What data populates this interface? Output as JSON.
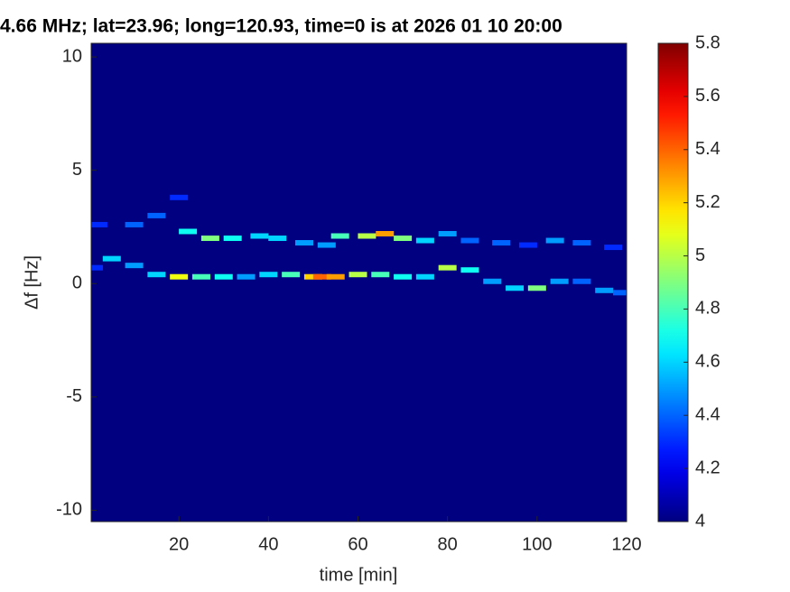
{
  "chart_data": {
    "type": "spectrogram",
    "title": "4.66 MHz;  lat=23.96; long=120.93, time=0 is at 2026 01 10 20:00",
    "xlabel": "time [min]",
    "ylabel": "Δf [Hz]",
    "xlim": [
      0.4,
      120
    ],
    "xticks": [
      20,
      40,
      60,
      80,
      100,
      120
    ],
    "ylim": [
      -10.5,
      10.6
    ],
    "yticks": [
      -10,
      -5,
      0,
      5,
      10
    ],
    "clim": [
      4,
      5.8
    ],
    "cticks": [
      4,
      4.2,
      4.4,
      4.6,
      4.8,
      5,
      5.2,
      5.4,
      5.6,
      5.8
    ],
    "colormap": "jet",
    "x": [
      1,
      5,
      10,
      15,
      20,
      25,
      30,
      35,
      40,
      45,
      50,
      52,
      55,
      60,
      65,
      70,
      75,
      80,
      85,
      90,
      95,
      100,
      105,
      110,
      115,
      119,
      2,
      10,
      15,
      20,
      22,
      27,
      32,
      38,
      42,
      48,
      53,
      56,
      62,
      66,
      70,
      75,
      80,
      85,
      92,
      98,
      104,
      110,
      117
    ],
    "y": [
      0.7,
      1.1,
      0.8,
      0.4,
      0.3,
      0.3,
      0.3,
      0.3,
      0.4,
      0.4,
      0.3,
      0.3,
      0.3,
      0.4,
      0.4,
      0.3,
      0.3,
      0.7,
      0.6,
      0.1,
      -0.2,
      -0.2,
      0.1,
      0.1,
      -0.3,
      -0.4,
      2.6,
      2.6,
      3.0,
      3.8,
      2.3,
      2.0,
      2.0,
      2.1,
      2.0,
      1.8,
      1.7,
      2.1,
      2.1,
      2.2,
      2.0,
      1.9,
      2.2,
      1.9,
      1.8,
      1.7,
      1.9,
      1.8,
      1.6
    ],
    "values": [
      4.3,
      4.6,
      4.5,
      4.6,
      5.1,
      4.8,
      4.7,
      4.5,
      4.6,
      4.8,
      5.2,
      5.4,
      5.3,
      5.0,
      4.8,
      4.7,
      4.6,
      5.0,
      4.7,
      4.5,
      4.6,
      4.9,
      4.5,
      4.4,
      4.5,
      4.4,
      4.3,
      4.4,
      4.4,
      4.3,
      4.7,
      4.9,
      4.7,
      4.6,
      4.6,
      4.5,
      4.5,
      4.8,
      5.0,
      5.3,
      4.9,
      4.6,
      4.5,
      4.4,
      4.4,
      4.3,
      4.5,
      4.4,
      4.3
    ]
  }
}
